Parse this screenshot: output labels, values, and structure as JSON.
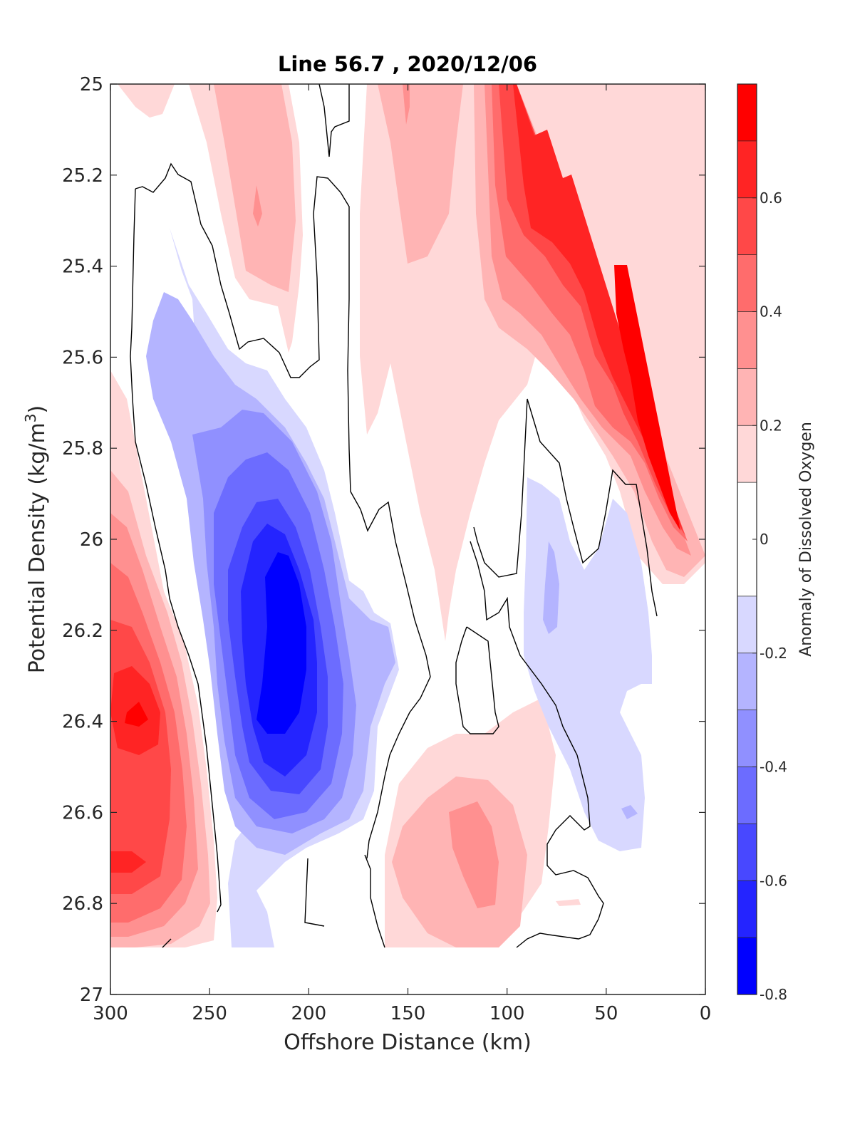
{
  "chart_data": {
    "type": "heatmap",
    "subtype": "filled-contour section",
    "title": "Line 56.7 , 2020/12/06",
    "xlabel": "Offshore Distance (km)",
    "ylabel_main": "Potential Density (kg/m",
    "ylabel_sup": "3",
    "ylabel_close": ")",
    "xlim": [
      300,
      0
    ],
    "x_reversed": true,
    "ylim": [
      25,
      27
    ],
    "y_reversed": true,
    "x_ticks": [
      300,
      250,
      200,
      150,
      100,
      50,
      0
    ],
    "x_tick_labels": [
      "300",
      "250",
      "200",
      "150",
      "100",
      "50",
      "0"
    ],
    "y_ticks": [
      25,
      25.2,
      25.4,
      25.6,
      25.8,
      26,
      26.2,
      26.4,
      26.6,
      26.8,
      27
    ],
    "y_tick_labels": [
      "25",
      "25.2",
      "25.4",
      "25.6",
      "25.8",
      "26",
      "26.2",
      "26.4",
      "26.6",
      "26.8",
      "27"
    ],
    "colorbar": {
      "label": "Anomaly of Dissolved Oxygen",
      "range": [
        -0.8,
        0.8
      ],
      "levels": [
        -0.8,
        -0.7,
        -0.6,
        -0.5,
        -0.4,
        -0.3,
        -0.2,
        -0.1,
        0.1,
        0.2,
        0.3,
        0.4,
        0.5,
        0.6,
        0.7,
        0.8
      ],
      "tick_values": [
        -0.8,
        -0.6,
        -0.4,
        -0.2,
        0,
        0.2,
        0.4,
        0.6
      ],
      "tick_labels": [
        "-0.8",
        "-0.6",
        "-0.4",
        "-0.2",
        "0",
        "0.2",
        "0.4",
        "0.6"
      ],
      "band_colors": [
        "#0000ff",
        "#2424ff",
        "#4848ff",
        "#6c6cff",
        "#9090ff",
        "#b4b4ff",
        "#d8d8ff",
        "#ffffff",
        "#ffd8d8",
        "#ffb4b4",
        "#ff9090",
        "#ff6c6c",
        "#ff4848",
        "#ff2424",
        "#ff0000"
      ]
    },
    "zero_contour": "black line (0 level)",
    "regions": [
      {
        "level": 0.1,
        "points": [
          [
            300,
            25
          ],
          [
            300,
            26.9
          ],
          [
            160,
            26.9
          ],
          [
            150,
            26.6
          ],
          [
            140,
            26.35
          ],
          [
            130,
            26.2
          ],
          [
            120,
            26.3
          ],
          [
            100,
            26.05
          ],
          [
            80,
            25.85
          ],
          [
            60,
            25.95
          ],
          [
            40,
            25.9
          ],
          [
            15,
            26.0
          ],
          [
            10,
            26.1
          ],
          [
            10,
            25
          ],
          [
            300,
            25
          ]
        ]
      },
      {
        "level": -0.1,
        "points": [
          [
            243,
            25.3
          ],
          [
            260,
            25.55
          ],
          [
            270,
            25.9
          ],
          [
            260,
            26.2
          ],
          [
            250,
            26.55
          ],
          [
            240,
            26.8
          ],
          [
            225,
            26.9
          ],
          [
            195,
            26.85
          ],
          [
            180,
            26.7
          ],
          [
            165,
            26.45
          ],
          [
            155,
            26.2
          ],
          [
            165,
            26.0
          ],
          [
            180,
            25.85
          ],
          [
            200,
            25.65
          ],
          [
            215,
            25.6
          ],
          [
            235,
            25.45
          ],
          [
            243,
            25.3
          ]
        ]
      }
    ]
  }
}
